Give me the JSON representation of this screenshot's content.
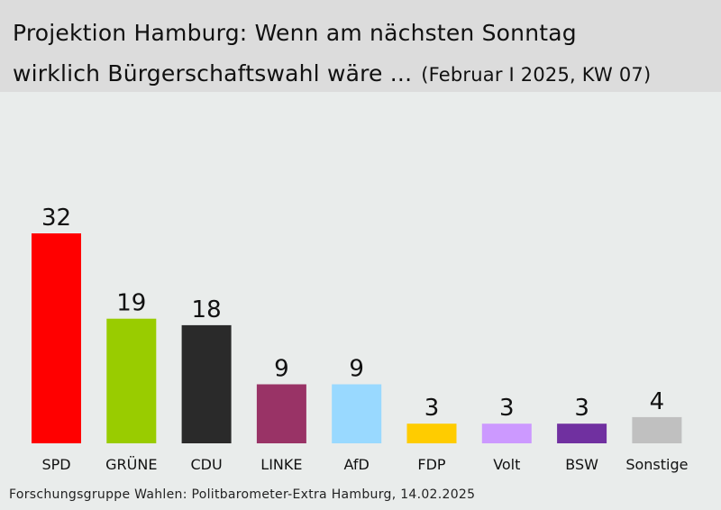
{
  "header": {
    "title_line1": "Projektion Hamburg: Wenn am nächsten Sonntag",
    "title_line2": "wirklich Bürgerschaftswahl wäre ...",
    "subtitle": "(Februar I 2025, KW 07)"
  },
  "source": "Forschungsgruppe Wahlen: Politbarometer-Extra Hamburg, 14.02.2025",
  "colors": {
    "background": "#e9eceb",
    "header_background": "#dcdcdc"
  },
  "chart_data": {
    "type": "bar",
    "title": "Projektion Hamburg: Wenn am nächsten Sonntag wirklich Bürgerschaftswahl wäre ...",
    "subtitle": "(Februar I 2025, KW 07)",
    "categories": [
      "SPD",
      "GRÜNE",
      "CDU",
      "LINKE",
      "AfD",
      "FDP",
      "Volt",
      "BSW",
      "Sonstige"
    ],
    "values": [
      32,
      19,
      18,
      9,
      9,
      3,
      3,
      3,
      4
    ],
    "colors": [
      "#ff0000",
      "#99cc00",
      "#2a2a2a",
      "#993366",
      "#99d9ff",
      "#ffcc00",
      "#cc99ff",
      "#7030a0",
      "#c0c0c0"
    ],
    "ylim": [
      0,
      32
    ],
    "grid": false,
    "legend": "none",
    "xlabel": "",
    "ylabel": ""
  }
}
